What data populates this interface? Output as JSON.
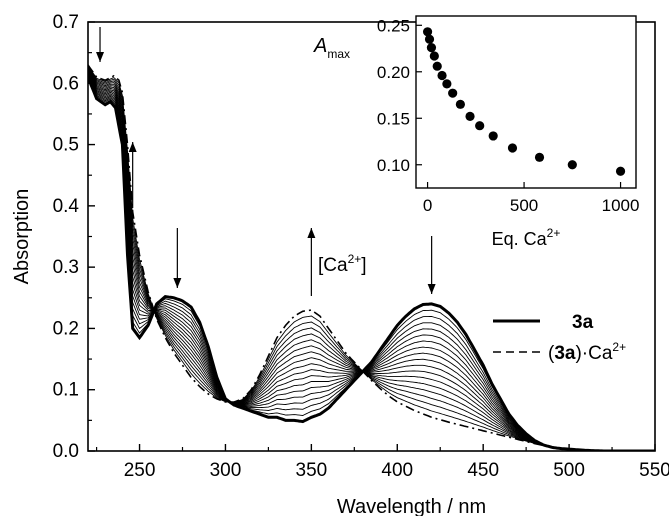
{
  "chart_data": [
    {
      "type": "line",
      "title": "",
      "xlabel": "Wavelength / nm",
      "ylabel": "Absorption",
      "xlim": [
        220,
        550
      ],
      "ylim": [
        0,
        0.7
      ],
      "x_ticks": [
        "250",
        "300",
        "350",
        "400",
        "450",
        "500",
        "550"
      ],
      "y_ticks": [
        "0.0",
        "0.1",
        "0.2",
        "0.3",
        "0.4",
        "0.5",
        "0.6",
        "0.7"
      ],
      "grid": false,
      "legend_position": "right",
      "legend_key_3a": "3a",
      "legend_key_complex_bold": "3a",
      "legend_key_complex_paren_open": "(",
      "legend_key_complex_paren_close": ")·Ca",
      "legend_key_complex_sup": "2+",
      "annotation_prefix": "[Ca",
      "annotation_sup": "2+",
      "annotation_suffix": "]",
      "change_arrows": [
        {
          "x": 227,
          "direction": "down"
        },
        {
          "x": 246,
          "direction": "up"
        },
        {
          "x": 272,
          "direction": "down"
        },
        {
          "x": 350,
          "direction": "up"
        },
        {
          "x": 420,
          "direction": "down"
        }
      ],
      "intermediate_spectra_count": 17,
      "series": [
        {
          "name": "3a",
          "style": "bold-solid",
          "x": [
            220,
            225,
            230,
            233,
            236,
            240,
            243,
            246,
            250,
            255,
            260,
            265,
            270,
            275,
            280,
            285,
            290,
            295,
            300,
            305,
            310,
            315,
            320,
            325,
            330,
            335,
            340,
            345,
            350,
            355,
            360,
            365,
            370,
            375,
            380,
            385,
            390,
            395,
            400,
            405,
            410,
            415,
            420,
            425,
            430,
            435,
            440,
            445,
            450,
            455,
            460,
            465,
            470,
            475,
            480,
            485,
            490,
            495,
            500,
            505,
            510,
            520,
            530,
            540,
            550
          ],
          "y": [
            0.61,
            0.575,
            0.565,
            0.57,
            0.56,
            0.5,
            0.32,
            0.2,
            0.185,
            0.205,
            0.24,
            0.252,
            0.25,
            0.245,
            0.235,
            0.21,
            0.17,
            0.12,
            0.085,
            0.075,
            0.07,
            0.065,
            0.06,
            0.055,
            0.055,
            0.05,
            0.05,
            0.048,
            0.055,
            0.06,
            0.07,
            0.085,
            0.1,
            0.115,
            0.13,
            0.145,
            0.165,
            0.185,
            0.205,
            0.22,
            0.232,
            0.239,
            0.24,
            0.236,
            0.225,
            0.21,
            0.19,
            0.165,
            0.14,
            0.11,
            0.085,
            0.06,
            0.042,
            0.028,
            0.017,
            0.01,
            0.006,
            0.004,
            0.003,
            0.002,
            0.001,
            0.0,
            0.0,
            0.0,
            0.0
          ]
        },
        {
          "name": "(3a)·Ca2+",
          "style": "dash-dot",
          "x": [
            220,
            225,
            230,
            235,
            238,
            240,
            243,
            246,
            250,
            255,
            260,
            265,
            270,
            275,
            280,
            285,
            290,
            295,
            300,
            305,
            310,
            315,
            320,
            325,
            330,
            335,
            340,
            345,
            350,
            355,
            360,
            365,
            370,
            375,
            380,
            385,
            390,
            395,
            400,
            410,
            420,
            430,
            440,
            450,
            460,
            470,
            480,
            490,
            500,
            510,
            520,
            530,
            540,
            550
          ],
          "y": [
            0.63,
            0.61,
            0.605,
            0.612,
            0.605,
            0.585,
            0.5,
            0.39,
            0.32,
            0.26,
            0.215,
            0.185,
            0.16,
            0.14,
            0.12,
            0.105,
            0.093,
            0.085,
            0.08,
            0.08,
            0.085,
            0.1,
            0.125,
            0.155,
            0.185,
            0.205,
            0.22,
            0.228,
            0.23,
            0.22,
            0.2,
            0.18,
            0.16,
            0.145,
            0.13,
            0.115,
            0.102,
            0.09,
            0.08,
            0.066,
            0.055,
            0.047,
            0.04,
            0.033,
            0.026,
            0.019,
            0.012,
            0.006,
            0.003,
            0.001,
            0.0,
            0.0,
            0.0,
            0.0
          ]
        }
      ]
    },
    {
      "type": "scatter",
      "title": "",
      "xlabel_prefix": "Eq. Ca",
      "xlabel_sup": "2+",
      "ylabel_main": "A",
      "ylabel_sub": "max",
      "xlim": [
        -60,
        1080
      ],
      "ylim": [
        0.075,
        0.26
      ],
      "x_ticks": [
        "0",
        "500",
        "1000"
      ],
      "y_ticks": [
        "0.10",
        "0.15",
        "0.20",
        "0.25"
      ],
      "grid": false,
      "series": [
        {
          "name": "",
          "x": [
            0,
            10,
            20,
            35,
            50,
            75,
            100,
            130,
            170,
            220,
            270,
            340,
            440,
            580,
            750,
            1000
          ],
          "y": [
            0.243,
            0.235,
            0.226,
            0.217,
            0.206,
            0.196,
            0.187,
            0.177,
            0.165,
            0.152,
            0.142,
            0.131,
            0.118,
            0.108,
            0.1,
            0.093
          ]
        }
      ]
    }
  ]
}
